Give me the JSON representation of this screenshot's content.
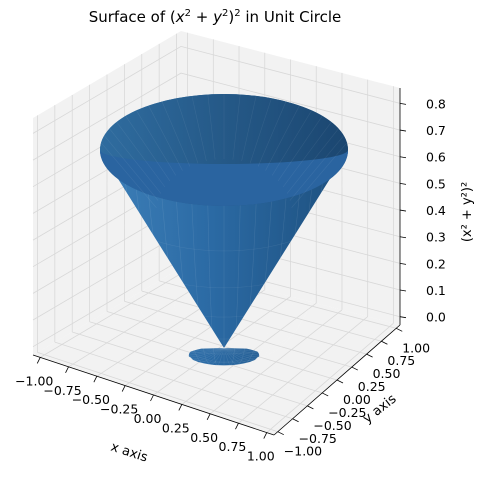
{
  "chart_data": {
    "type": "surface3d",
    "title": {
      "pre": "Surface of (",
      "x": "x",
      "y": "y",
      "sup": "2",
      "post": ")",
      "sup2": "2",
      "tail": " in Unit Circle"
    },
    "xlabel": "x axis",
    "ylabel": "y axis",
    "zlabel": "(x² + y²)²",
    "function": "(x^2 + y^2)^2",
    "domain": "unit circle",
    "xlim": [
      -1.0,
      1.0
    ],
    "ylim": [
      -1.0,
      1.0
    ],
    "zlim": [
      0.0,
      0.8
    ],
    "x_ticks": [
      "−1.00",
      "−0.75",
      "−0.50",
      "−0.25",
      "0.00",
      "0.25",
      "0.50",
      "0.75",
      "1.00"
    ],
    "y_ticks": [
      "−1.00",
      "−0.75",
      "−0.50",
      "−0.25",
      "0.00",
      "0.25",
      "0.50",
      "0.75",
      "1.00"
    ],
    "z_ticks": [
      "0.0",
      "0.1",
      "0.2",
      "0.3",
      "0.4",
      "0.5",
      "0.6",
      "0.7",
      "0.8"
    ],
    "surface_color": "#1f77b4",
    "pane_color": "#f2f2f2",
    "grid": true
  }
}
